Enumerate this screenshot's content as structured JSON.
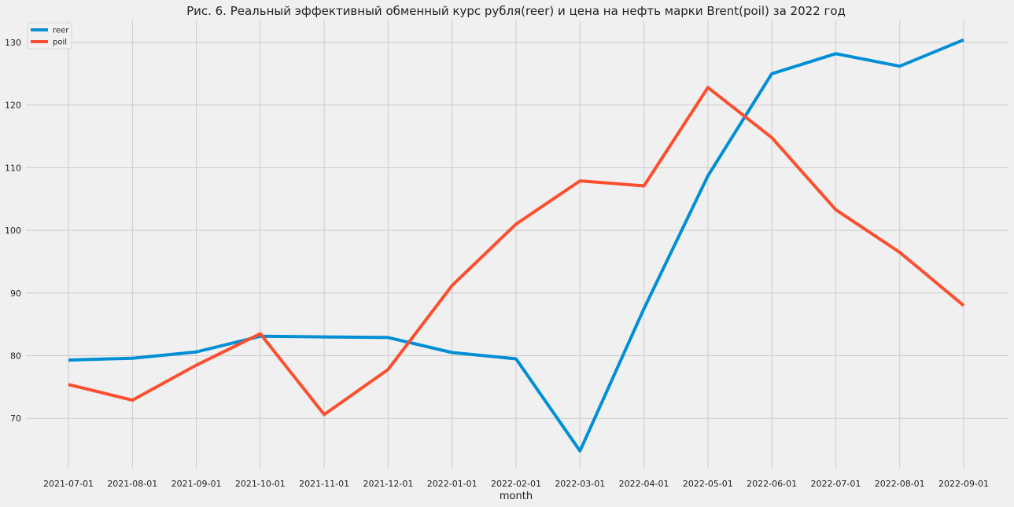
{
  "chart_data": {
    "type": "line",
    "title": "Рис. 6. Реальный эффективный обменный курс рубля(reer) и цена на нефть марки Brent(poil) за 2022 год",
    "xlabel": "month",
    "ylabel": "",
    "categories": [
      "2021-07-01",
      "2021-08-01",
      "2021-09-01",
      "2021-10-01",
      "2021-11-01",
      "2021-12-01",
      "2022-01-01",
      "2022-02-01",
      "2022-03-01",
      "2022-04-01",
      "2022-05-01",
      "2022-06-01",
      "2022-07-01",
      "2022-08-01",
      "2022-09-01"
    ],
    "yticks": [
      70,
      80,
      90,
      100,
      110,
      120,
      130
    ],
    "ylim": [
      62,
      133.5
    ],
    "grid": true,
    "legend_position": "top-left",
    "series": [
      {
        "name": "reer",
        "color": "#008fd5",
        "values": [
          79.3,
          79.6,
          80.6,
          83.1,
          83.0,
          82.9,
          80.5,
          79.5,
          64.8,
          87.5,
          108.7,
          125.0,
          128.2,
          126.2,
          130.4
        ]
      },
      {
        "name": "poil",
        "color": "#fc4f30",
        "values": [
          75.4,
          72.9,
          78.5,
          83.5,
          70.6,
          77.8,
          91.2,
          101.0,
          107.9,
          107.1,
          122.8,
          114.8,
          103.3,
          96.5,
          88.0
        ]
      }
    ]
  }
}
